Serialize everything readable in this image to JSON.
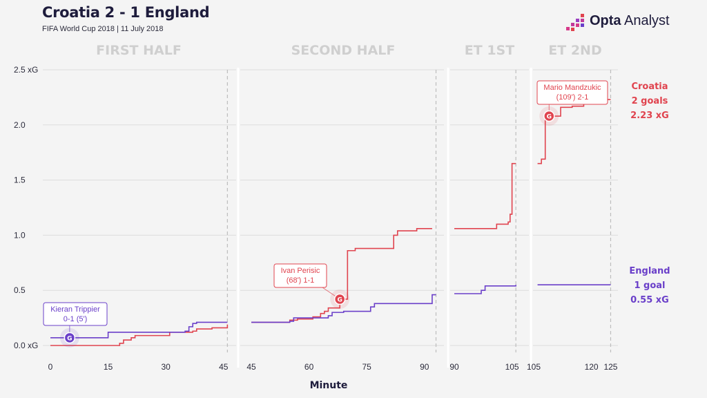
{
  "header": {
    "title": "Croatia 2 - 1 England",
    "subtitle": "FIFA World Cup 2018 | 11 July 2018"
  },
  "logo": {
    "word1": "Opta",
    "word2": " Analyst"
  },
  "colors": {
    "croatia": "#e0434e",
    "england": "#6a3fc9",
    "phase_label": "#cfcfcf",
    "grid": "#dcdcdc"
  },
  "chart_data": {
    "type": "line",
    "step": true,
    "xlabel": "Minute",
    "ylabel": "",
    "ylim": [
      0,
      2.5
    ],
    "yticks": [
      "0.0 xG",
      "0.5",
      "1.0",
      "1.5",
      "2.0",
      "2.5 xG"
    ],
    "yticks_values": [
      0,
      0.5,
      1.0,
      1.5,
      2.0,
      2.5
    ],
    "panels": [
      {
        "label": "FIRST HALF",
        "xlim": [
          0,
          47
        ],
        "ticks": [
          0,
          15,
          30,
          45
        ],
        "end_line": 46
      },
      {
        "label": "SECOND HALF",
        "xlim": [
          45,
          94
        ],
        "ticks": [
          45,
          60,
          75,
          90
        ],
        "end_line": 93
      },
      {
        "label": "ET 1ST",
        "xlim": [
          90,
          107
        ],
        "ticks": [
          90,
          105
        ],
        "end_line": 106
      },
      {
        "label": "ET 2ND",
        "xlim": [
          105,
          125
        ],
        "ticks": [
          105,
          120,
          125
        ],
        "end_line": 125
      }
    ],
    "series": [
      {
        "name": "Croatia",
        "summary": [
          "Croatia",
          "2 goals",
          "2.23 xG"
        ],
        "segments": [
          [
            [
              0,
              0
            ],
            [
              18,
              0.02
            ],
            [
              19,
              0.05
            ],
            [
              21,
              0.07
            ],
            [
              22,
              0.09
            ],
            [
              31,
              0.12
            ],
            [
              37,
              0.13
            ],
            [
              38,
              0.15
            ],
            [
              42,
              0.16
            ],
            [
              46,
              0.19
            ]
          ],
          [
            [
              45,
              0.21
            ],
            [
              55,
              0.23
            ],
            [
              57,
              0.24
            ],
            [
              61,
              0.26
            ],
            [
              63,
              0.29
            ],
            [
              64,
              0.31
            ],
            [
              65,
              0.34
            ],
            [
              68,
              0.42
            ],
            [
              70,
              0.86
            ],
            [
              72,
              0.88
            ],
            [
              81,
              0.88
            ],
            [
              82,
              1.0
            ],
            [
              83,
              1.04
            ],
            [
              88,
              1.06
            ],
            [
              92,
              1.06
            ]
          ],
          [
            [
              90,
              1.06
            ],
            [
              101,
              1.1
            ],
            [
              104,
              1.12
            ],
            [
              104.5,
              1.19
            ],
            [
              105,
              1.65
            ],
            [
              106,
              1.65
            ]
          ],
          [
            [
              106,
              1.65
            ],
            [
              107,
              1.69
            ],
            [
              108,
              2.08
            ],
            [
              109,
              2.08
            ],
            [
              112,
              2.16
            ],
            [
              115,
              2.17
            ],
            [
              118,
              2.21
            ],
            [
              121,
              2.22
            ],
            [
              124,
              2.23
            ],
            [
              125,
              2.23
            ]
          ]
        ]
      },
      {
        "name": "England",
        "summary": [
          "England",
          "1 goal",
          "0.55 xG"
        ],
        "segments": [
          [
            [
              0,
              0.07
            ],
            [
              15,
              0.12
            ],
            [
              35,
              0.13
            ],
            [
              36,
              0.17
            ],
            [
              37,
              0.2
            ],
            [
              38,
              0.21
            ],
            [
              46,
              0.21
            ]
          ],
          [
            [
              45,
              0.21
            ],
            [
              55,
              0.22
            ],
            [
              56,
              0.25
            ],
            [
              65,
              0.27
            ],
            [
              66,
              0.3
            ],
            [
              69,
              0.31
            ],
            [
              75,
              0.31
            ],
            [
              76,
              0.35
            ],
            [
              77,
              0.38
            ],
            [
              91,
              0.38
            ],
            [
              92,
              0.46
            ],
            [
              93,
              0.46
            ]
          ],
          [
            [
              90,
              0.47
            ],
            [
              97,
              0.5
            ],
            [
              98,
              0.54
            ],
            [
              106,
              0.55
            ]
          ],
          [
            [
              106,
              0.55
            ],
            [
              125,
              0.55
            ]
          ]
        ]
      }
    ],
    "goals": [
      {
        "team": "England",
        "minute": 5,
        "xg": 0.07,
        "marker": "G",
        "label_line1": "Kieran Trippier",
        "label_line2": "0-1 (5')"
      },
      {
        "team": "Croatia",
        "minute": 68,
        "xg": 0.42,
        "marker": "G",
        "label_line1": "Ivan Perisic",
        "label_line2": "(68') 1-1"
      },
      {
        "team": "Croatia",
        "minute": 109,
        "xg": 2.08,
        "marker": "G",
        "label_line1": "Mario Mandzukic",
        "label_line2": "(109') 2-1"
      }
    ]
  }
}
